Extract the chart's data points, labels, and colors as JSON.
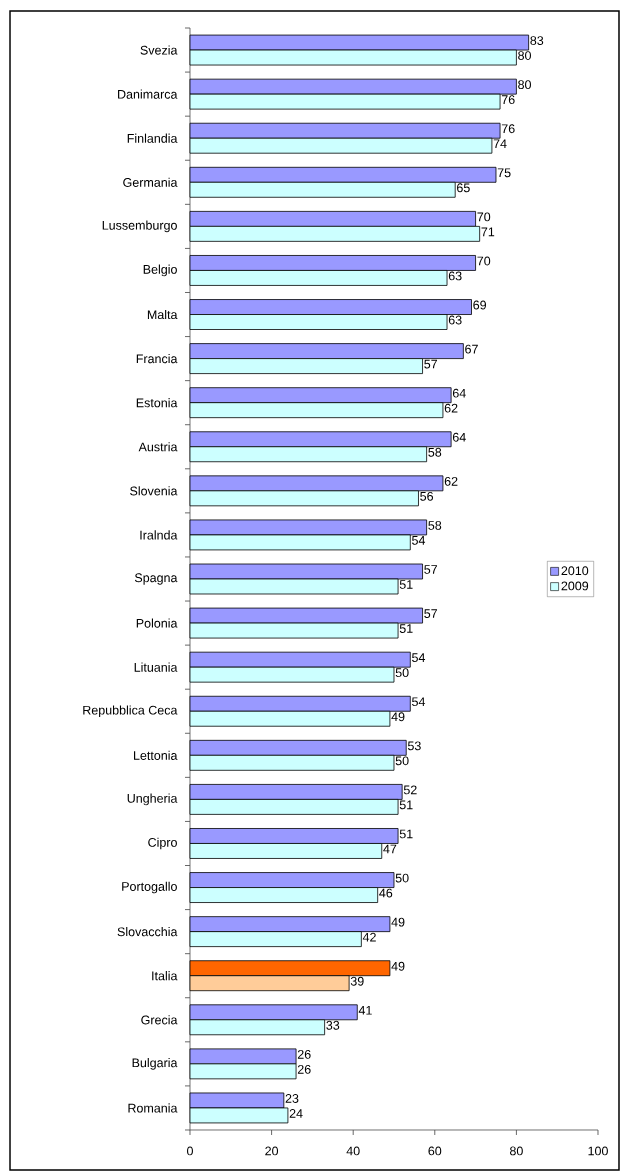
{
  "chart_data": {
    "type": "bar",
    "orientation": "horizontal",
    "categories": [
      "Svezia",
      "Danimarca",
      "Finlandia",
      "Germania",
      "Lussemburgo",
      "Belgio",
      "Malta",
      "Francia",
      "Estonia",
      "Austria",
      "Slovenia",
      "Iralnda",
      "Spagna",
      "Polonia",
      "Lituania",
      "Repubblica Ceca",
      "Lettonia",
      "Ungheria",
      "Cipro",
      "Portogallo",
      "Slovacchia",
      "Italia",
      "Grecia",
      "Bulgaria",
      "Romania"
    ],
    "series": [
      {
        "name": "2010",
        "color": "#9999ff",
        "colors": [
          "#9999ff",
          "#9999ff",
          "#9999ff",
          "#9999ff",
          "#9999ff",
          "#9999ff",
          "#9999ff",
          "#9999ff",
          "#9999ff",
          "#9999ff",
          "#9999ff",
          "#9999ff",
          "#9999ff",
          "#9999ff",
          "#9999ff",
          "#9999ff",
          "#9999ff",
          "#9999ff",
          "#9999ff",
          "#9999ff",
          "#9999ff",
          "#ff6600",
          "#9999ff",
          "#9999ff",
          "#9999ff"
        ],
        "values": [
          83,
          80,
          76,
          75,
          70,
          70,
          69,
          67,
          64,
          64,
          62,
          58,
          57,
          57,
          54,
          54,
          53,
          52,
          51,
          50,
          49,
          49,
          41,
          26,
          23
        ]
      },
      {
        "name": "2009",
        "color": "#ccffff",
        "colors": [
          "#ccffff",
          "#ccffff",
          "#ccffff",
          "#ccffff",
          "#ccffff",
          "#ccffff",
          "#ccffff",
          "#ccffff",
          "#ccffff",
          "#ccffff",
          "#ccffff",
          "#ccffff",
          "#ccffff",
          "#ccffff",
          "#ccffff",
          "#ccffff",
          "#ccffff",
          "#ccffff",
          "#ccffff",
          "#ccffff",
          "#ccffff",
          "#ffcc99",
          "#ccffff",
          "#ccffff",
          "#ccffff"
        ],
        "values": [
          80,
          76,
          74,
          65,
          71,
          63,
          63,
          57,
          62,
          58,
          56,
          54,
          51,
          51,
          50,
          49,
          50,
          51,
          47,
          46,
          42,
          39,
          33,
          26,
          24
        ]
      }
    ],
    "xlim": [
      0,
      100
    ],
    "xticks": [
      0,
      20,
      40,
      60,
      80,
      100
    ],
    "data_labels": true,
    "legend": "right"
  }
}
